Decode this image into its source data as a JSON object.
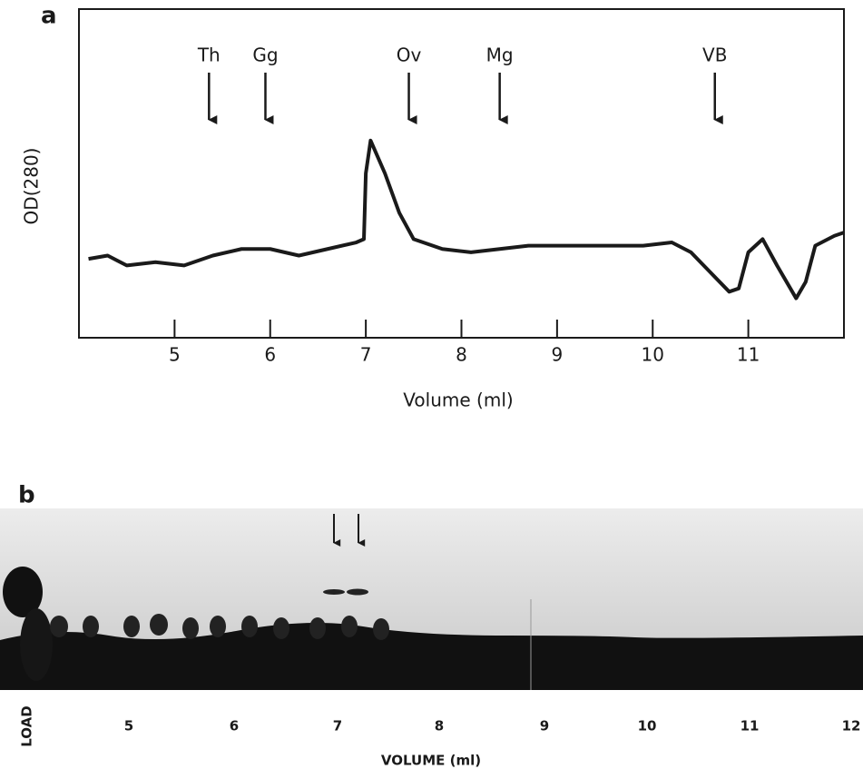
{
  "chart_data": {
    "type": "line",
    "panel_label": "a",
    "xlabel": "Volume (ml)",
    "ylabel": "OD(280)",
    "xlim": [
      4,
      12
    ],
    "xticks": [
      5,
      6,
      7,
      8,
      9,
      10,
      11
    ],
    "ylim": [
      0,
      1
    ],
    "markers": [
      {
        "label": "Th",
        "x": 5.36
      },
      {
        "label": "Gg",
        "x": 5.95
      },
      {
        "label": "Ov",
        "x": 7.45
      },
      {
        "label": "Mg",
        "x": 8.4
      },
      {
        "label": "VB",
        "x": 10.65
      }
    ],
    "color": "#1a1a1a",
    "x": [
      4.1,
      4.3,
      4.5,
      4.8,
      5.1,
      5.4,
      5.7,
      6.0,
      6.3,
      6.6,
      6.9,
      6.98,
      7.0,
      7.05,
      7.2,
      7.35,
      7.5,
      7.8,
      8.1,
      8.4,
      8.7,
      9.0,
      9.3,
      9.6,
      9.9,
      10.2,
      10.4,
      10.6,
      10.8,
      10.9,
      11.0,
      11.15,
      11.3,
      11.5,
      11.6,
      11.7,
      11.9,
      12.0
    ],
    "values": [
      0.24,
      0.25,
      0.22,
      0.23,
      0.22,
      0.25,
      0.27,
      0.27,
      0.25,
      0.27,
      0.29,
      0.3,
      0.5,
      0.6,
      0.5,
      0.38,
      0.3,
      0.27,
      0.26,
      0.27,
      0.28,
      0.28,
      0.28,
      0.28,
      0.28,
      0.29,
      0.26,
      0.2,
      0.14,
      0.15,
      0.26,
      0.3,
      0.22,
      0.12,
      0.17,
      0.28,
      0.31,
      0.32
    ]
  },
  "gel": {
    "panel_label": "b",
    "lane_labels": [
      "LOAD",
      "5",
      "6",
      "7",
      "8",
      "9",
      "10",
      "11",
      "12"
    ],
    "axis_label": "VOLUME (ml)"
  }
}
